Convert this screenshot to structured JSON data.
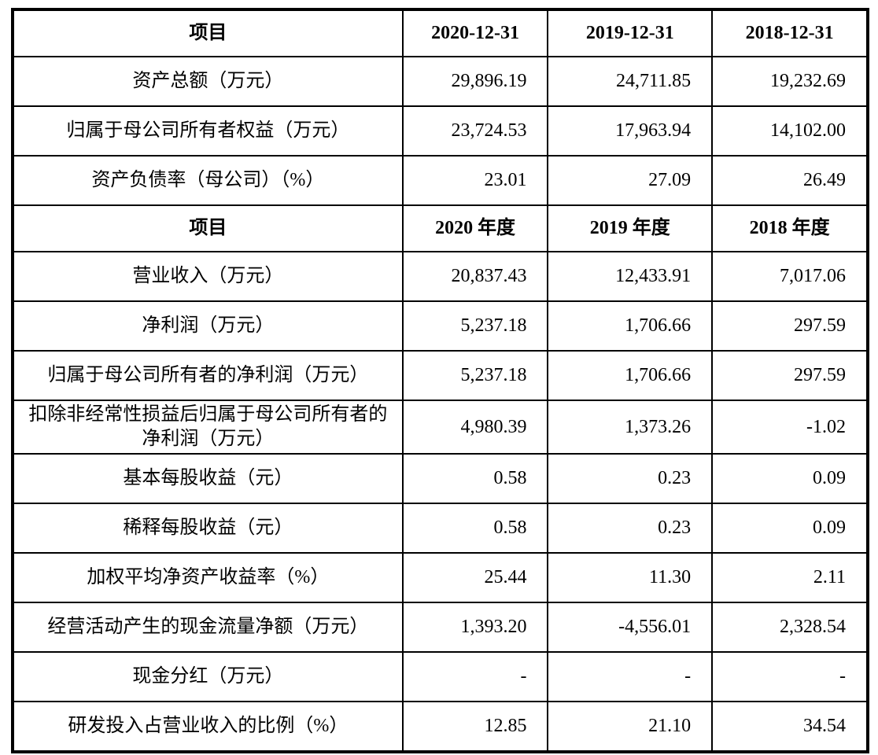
{
  "table": {
    "rows": [
      {
        "type": "header",
        "cells": [
          "项目",
          "2020-12-31",
          "2019-12-31",
          "2018-12-31"
        ]
      },
      {
        "type": "data",
        "label": "资产总额（万元）",
        "values": [
          "29,896.19",
          "24,711.85",
          "19,232.69"
        ]
      },
      {
        "type": "data",
        "label": "归属于母公司所有者权益（万元）",
        "values": [
          "23,724.53",
          "17,963.94",
          "14,102.00"
        ]
      },
      {
        "type": "data",
        "label": "资产负债率（母公司）（%）",
        "values": [
          "23.01",
          "27.09",
          "26.49"
        ]
      },
      {
        "type": "header",
        "cells": [
          "项目",
          "2020 年度",
          "2019 年度",
          "2018 年度"
        ]
      },
      {
        "type": "data",
        "label": "营业收入（万元）",
        "values": [
          "20,837.43",
          "12,433.91",
          "7,017.06"
        ]
      },
      {
        "type": "data",
        "label": "净利润（万元）",
        "values": [
          "5,237.18",
          "1,706.66",
          "297.59"
        ]
      },
      {
        "type": "data",
        "label": "归属于母公司所有者的净利润（万元）",
        "values": [
          "5,237.18",
          "1,706.66",
          "297.59"
        ]
      },
      {
        "type": "data",
        "label": "扣除非经常性损益后归属于母公司所有者的净利润（万元）",
        "values": [
          "4,980.39",
          "1,373.26",
          "-1.02"
        ]
      },
      {
        "type": "data",
        "label": "基本每股收益（元）",
        "values": [
          "0.58",
          "0.23",
          "0.09"
        ]
      },
      {
        "type": "data",
        "label": "稀释每股收益（元）",
        "values": [
          "0.58",
          "0.23",
          "0.09"
        ]
      },
      {
        "type": "data",
        "label": "加权平均净资产收益率（%）",
        "values": [
          "25.44",
          "11.30",
          "2.11"
        ]
      },
      {
        "type": "data",
        "label": "经营活动产生的现金流量净额（万元）",
        "values": [
          "1,393.20",
          "-4,556.01",
          "2,328.54"
        ]
      },
      {
        "type": "data",
        "label": "现金分红（万元）",
        "values": [
          "-",
          "-",
          "-"
        ]
      },
      {
        "type": "data",
        "label": "研发投入占营业收入的比例（%）",
        "values": [
          "12.85",
          "21.10",
          "34.54"
        ]
      }
    ],
    "border_color": "#000000",
    "background_color": "#ffffff"
  }
}
